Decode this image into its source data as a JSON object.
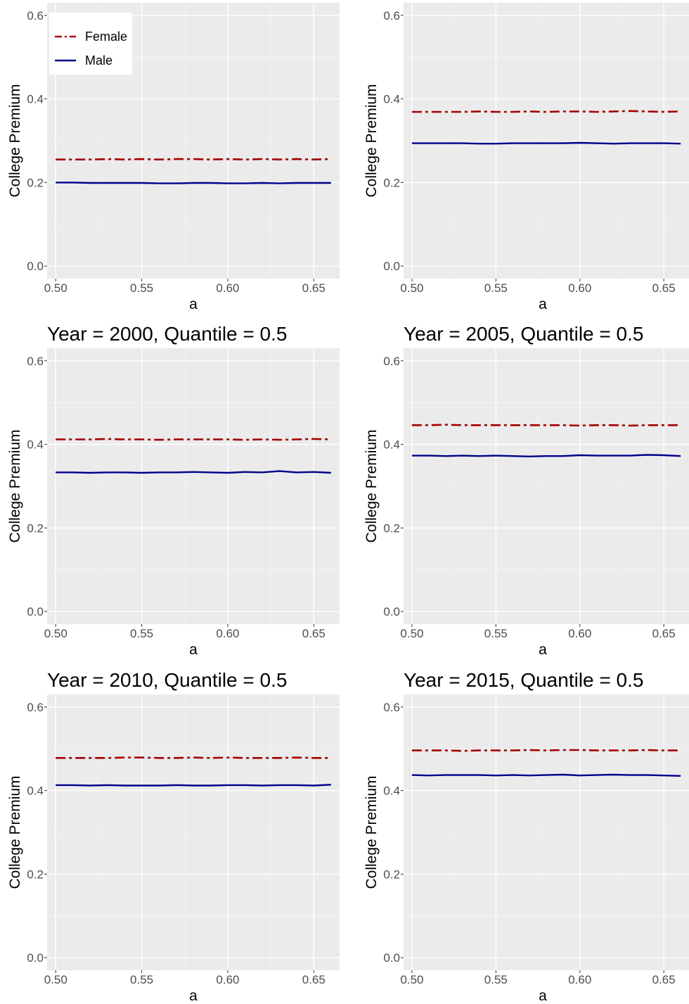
{
  "figure": {
    "colors": {
      "panel_background": "#ebebeb",
      "grid_major": "#ffffff",
      "grid_minor": "#f5f5f5",
      "female": "#a50000",
      "male": "#00008b"
    },
    "legend": {
      "position": "top-left of first panel",
      "entries": [
        "Female",
        "Male"
      ]
    }
  },
  "chart_data": [
    {
      "type": "line",
      "title": "",
      "xlabel": "a",
      "ylabel": "College Premium",
      "xlim": [
        0.495,
        0.665
      ],
      "ylim": [
        0.0,
        0.6
      ],
      "xticks": [
        "0.50",
        "0.55",
        "0.60",
        "0.65"
      ],
      "yticks": [
        "0.0",
        "0.2",
        "0.4",
        "0.6"
      ],
      "grid": true,
      "x": [
        0.5,
        0.51,
        0.52,
        0.53,
        0.54,
        0.55,
        0.56,
        0.57,
        0.58,
        0.59,
        0.6,
        0.61,
        0.62,
        0.63,
        0.64,
        0.65,
        0.66
      ],
      "series": [
        {
          "name": "Female",
          "line_style": "dashdot",
          "values": [
            0.255,
            0.255,
            0.255,
            0.256,
            0.255,
            0.256,
            0.255,
            0.256,
            0.256,
            0.255,
            0.256,
            0.255,
            0.256,
            0.255,
            0.256,
            0.255,
            0.256
          ]
        },
        {
          "name": "Male",
          "line_style": "solid",
          "values": [
            0.2,
            0.2,
            0.199,
            0.199,
            0.199,
            0.199,
            0.198,
            0.198,
            0.199,
            0.199,
            0.198,
            0.198,
            0.199,
            0.198,
            0.199,
            0.199,
            0.199
          ]
        }
      ]
    },
    {
      "type": "line",
      "title": "",
      "xlabel": "a",
      "ylabel": "College Premium",
      "xlim": [
        0.495,
        0.665
      ],
      "ylim": [
        0.0,
        0.6
      ],
      "xticks": [
        "0.50",
        "0.55",
        "0.60",
        "0.65"
      ],
      "yticks": [
        "0.0",
        "0.2",
        "0.4",
        "0.6"
      ],
      "grid": true,
      "x": [
        0.5,
        0.51,
        0.52,
        0.53,
        0.54,
        0.55,
        0.56,
        0.57,
        0.58,
        0.59,
        0.6,
        0.61,
        0.62,
        0.63,
        0.64,
        0.65,
        0.66
      ],
      "series": [
        {
          "name": "Female",
          "line_style": "dashdot",
          "values": [
            0.369,
            0.369,
            0.369,
            0.369,
            0.37,
            0.369,
            0.369,
            0.37,
            0.369,
            0.37,
            0.37,
            0.369,
            0.37,
            0.371,
            0.37,
            0.369,
            0.37
          ]
        },
        {
          "name": "Male",
          "line_style": "solid",
          "values": [
            0.294,
            0.294,
            0.294,
            0.294,
            0.293,
            0.293,
            0.294,
            0.294,
            0.294,
            0.294,
            0.295,
            0.294,
            0.293,
            0.294,
            0.294,
            0.294,
            0.293
          ]
        }
      ]
    },
    {
      "type": "line",
      "title": "Year = 2000, Quantile = 0.5",
      "xlabel": "a",
      "ylabel": "College Premium",
      "xlim": [
        0.495,
        0.665
      ],
      "ylim": [
        0.0,
        0.6
      ],
      "xticks": [
        "0.50",
        "0.55",
        "0.60",
        "0.65"
      ],
      "yticks": [
        "0.0",
        "0.2",
        "0.4",
        "0.6"
      ],
      "grid": true,
      "x": [
        0.5,
        0.51,
        0.52,
        0.53,
        0.54,
        0.55,
        0.56,
        0.57,
        0.58,
        0.59,
        0.6,
        0.61,
        0.62,
        0.63,
        0.64,
        0.65,
        0.66
      ],
      "series": [
        {
          "name": "Female",
          "line_style": "dashdot",
          "values": [
            0.412,
            0.412,
            0.412,
            0.413,
            0.412,
            0.412,
            0.411,
            0.412,
            0.412,
            0.412,
            0.412,
            0.411,
            0.412,
            0.411,
            0.412,
            0.413,
            0.412
          ]
        },
        {
          "name": "Male",
          "line_style": "solid",
          "values": [
            0.333,
            0.333,
            0.332,
            0.333,
            0.333,
            0.332,
            0.333,
            0.333,
            0.334,
            0.333,
            0.332,
            0.334,
            0.333,
            0.336,
            0.333,
            0.334,
            0.332
          ]
        }
      ]
    },
    {
      "type": "line",
      "title": "Year = 2005, Quantile = 0.5",
      "xlabel": "a",
      "ylabel": "College Premium",
      "xlim": [
        0.495,
        0.665
      ],
      "ylim": [
        0.0,
        0.6
      ],
      "xticks": [
        "0.50",
        "0.55",
        "0.60",
        "0.65"
      ],
      "yticks": [
        "0.0",
        "0.2",
        "0.4",
        "0.6"
      ],
      "grid": true,
      "x": [
        0.5,
        0.51,
        0.52,
        0.53,
        0.54,
        0.55,
        0.56,
        0.57,
        0.58,
        0.59,
        0.6,
        0.61,
        0.62,
        0.63,
        0.64,
        0.65,
        0.66
      ],
      "series": [
        {
          "name": "Female",
          "line_style": "dashdot",
          "values": [
            0.446,
            0.446,
            0.447,
            0.446,
            0.446,
            0.446,
            0.446,
            0.446,
            0.446,
            0.446,
            0.445,
            0.446,
            0.446,
            0.445,
            0.446,
            0.446,
            0.446
          ]
        },
        {
          "name": "Male",
          "line_style": "solid",
          "values": [
            0.373,
            0.373,
            0.372,
            0.373,
            0.372,
            0.373,
            0.372,
            0.371,
            0.372,
            0.372,
            0.374,
            0.373,
            0.373,
            0.373,
            0.375,
            0.374,
            0.372
          ]
        }
      ]
    },
    {
      "type": "line",
      "title": "Year = 2010, Quantile = 0.5",
      "xlabel": "a",
      "ylabel": "College Premium",
      "xlim": [
        0.495,
        0.665
      ],
      "ylim": [
        0.0,
        0.6
      ],
      "xticks": [
        "0.50",
        "0.55",
        "0.60",
        "0.65"
      ],
      "yticks": [
        "0.0",
        "0.2",
        "0.4",
        "0.6"
      ],
      "grid": true,
      "x": [
        0.5,
        0.51,
        0.52,
        0.53,
        0.54,
        0.55,
        0.56,
        0.57,
        0.58,
        0.59,
        0.6,
        0.61,
        0.62,
        0.63,
        0.64,
        0.65,
        0.66
      ],
      "series": [
        {
          "name": "Female",
          "line_style": "dashdot",
          "values": [
            0.478,
            0.478,
            0.478,
            0.478,
            0.479,
            0.479,
            0.478,
            0.478,
            0.479,
            0.478,
            0.479,
            0.478,
            0.478,
            0.478,
            0.479,
            0.478,
            0.478
          ]
        },
        {
          "name": "Male",
          "line_style": "solid",
          "values": [
            0.413,
            0.413,
            0.412,
            0.413,
            0.412,
            0.412,
            0.412,
            0.413,
            0.412,
            0.412,
            0.413,
            0.413,
            0.412,
            0.413,
            0.413,
            0.412,
            0.414
          ]
        }
      ]
    },
    {
      "type": "line",
      "title": "Year = 2015, Quantile = 0.5",
      "xlabel": "a",
      "ylabel": "College Premium",
      "xlim": [
        0.495,
        0.665
      ],
      "ylim": [
        0.0,
        0.6
      ],
      "xticks": [
        "0.50",
        "0.55",
        "0.60",
        "0.65"
      ],
      "yticks": [
        "0.0",
        "0.2",
        "0.4",
        "0.6"
      ],
      "grid": true,
      "x": [
        0.5,
        0.51,
        0.52,
        0.53,
        0.54,
        0.55,
        0.56,
        0.57,
        0.58,
        0.59,
        0.6,
        0.61,
        0.62,
        0.63,
        0.64,
        0.65,
        0.66
      ],
      "series": [
        {
          "name": "Female",
          "line_style": "dashdot",
          "values": [
            0.496,
            0.496,
            0.496,
            0.495,
            0.496,
            0.496,
            0.496,
            0.497,
            0.496,
            0.497,
            0.497,
            0.496,
            0.496,
            0.496,
            0.497,
            0.496,
            0.496
          ]
        },
        {
          "name": "Male",
          "line_style": "solid",
          "values": [
            0.437,
            0.436,
            0.437,
            0.437,
            0.437,
            0.436,
            0.437,
            0.436,
            0.437,
            0.438,
            0.436,
            0.437,
            0.438,
            0.437,
            0.437,
            0.436,
            0.435
          ]
        }
      ]
    }
  ]
}
